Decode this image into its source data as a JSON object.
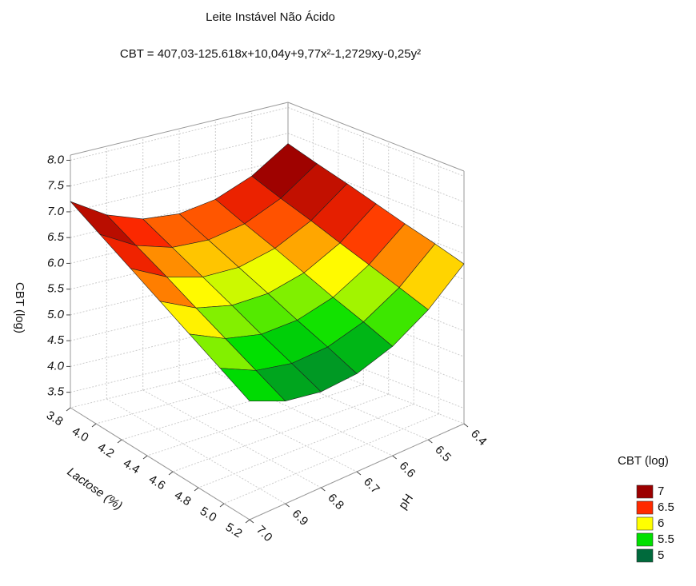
{
  "chart_data": {
    "type": "surface",
    "title": "Leite Instável Não Ácido",
    "subtitle": "CBT = 407,03-125.618x+10,04y+9,77x²-1,2729xy-0,25y²",
    "x_label": "Lactose (%)",
    "y_label": "pH",
    "z_label": "CBT (log)",
    "x": [
      3.8,
      4.03,
      4.27,
      4.5,
      4.73,
      4.97,
      5.2
    ],
    "y": [
      6.4,
      6.5,
      6.6,
      6.7,
      6.8,
      6.9,
      7.0
    ],
    "z": [
      [
        7.3,
        6.84,
        6.56,
        6.45,
        6.52,
        6.77,
        7.2
      ],
      [
        7.13,
        6.65,
        6.35,
        6.23,
        6.28,
        6.51,
        6.92
      ],
      [
        6.97,
        6.47,
        6.15,
        6.0,
        6.03,
        6.25,
        6.63
      ],
      [
        6.8,
        6.28,
        5.94,
        5.78,
        5.79,
        5.98,
        6.35
      ],
      [
        6.63,
        6.1,
        5.73,
        5.55,
        5.54,
        5.72,
        6.07
      ],
      [
        6.47,
        5.91,
        5.53,
        5.33,
        5.3,
        5.45,
        5.78
      ],
      [
        6.3,
        5.72,
        5.32,
        5.1,
        5.06,
        5.19,
        5.5
      ]
    ],
    "xlim": [
      3.8,
      5.2
    ],
    "xticks": [
      3.8,
      {
        "value": 4,
        "label": "4.0"
      },
      4.2,
      4.4,
      4.6,
      4.8,
      {
        "value": 5,
        "label": "5.0"
      },
      5.2
    ],
    "ylim": [
      6.4,
      7.0
    ],
    "yticks": [
      6.4,
      6.5,
      6.6,
      6.7,
      6.8,
      6.9,
      {
        "value": 7,
        "label": "7.0"
      }
    ],
    "zlim": [
      3.2,
      8.1
    ],
    "zticks": [
      3.5,
      {
        "value": 4,
        "label": "4.0"
      },
      4.5,
      {
        "value": 5,
        "label": "5.0"
      },
      5.5,
      {
        "value": 6,
        "label": "6.0"
      },
      6.5,
      {
        "value": 7,
        "label": "7.0"
      },
      7.5,
      {
        "value": 8,
        "label": "8.0"
      }
    ],
    "grid": true,
    "legend": {
      "title": "CBT (log)",
      "position": "right",
      "levels": [
        {
          "value": 7,
          "color": "#9b0000"
        },
        {
          "value": 6.5,
          "color": "#ff2a00"
        },
        {
          "value": 6,
          "color": "#ffff00"
        },
        {
          "value": 5.5,
          "color": "#00e000"
        },
        {
          "value": 5,
          "color": "#006a3c"
        }
      ]
    }
  }
}
